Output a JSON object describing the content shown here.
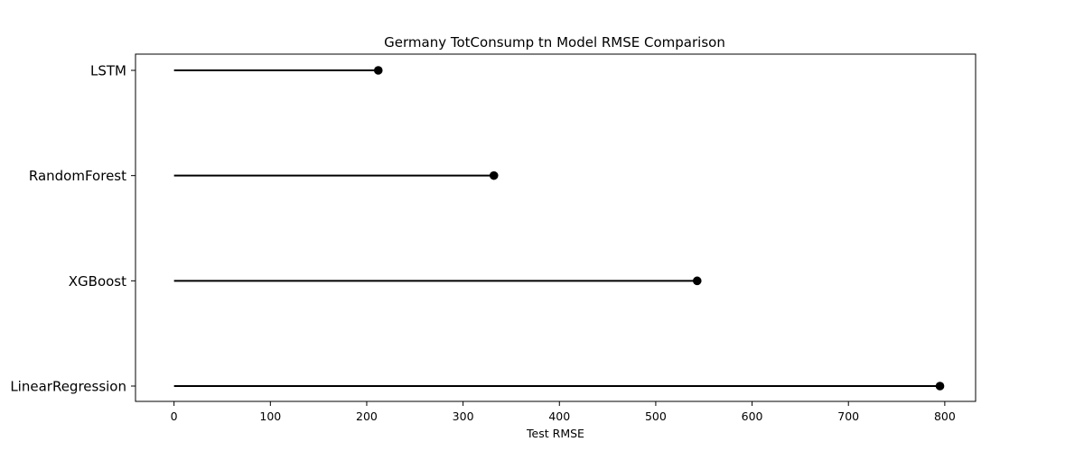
{
  "chart_data": {
    "type": "lollipop",
    "title": "Germany TotConsump tn Model RMSE Comparison",
    "xlabel": "Test RMSE",
    "ylabel": "",
    "categories": [
      "LSTM",
      "RandomForest",
      "XGBoost",
      "LinearRegression"
    ],
    "values": [
      212,
      332,
      543,
      795
    ],
    "xlim": [
      -40,
      832
    ],
    "xticks": [
      0,
      100,
      200,
      300,
      400,
      500,
      600,
      700,
      800
    ],
    "grid": false,
    "color": "#000000"
  }
}
